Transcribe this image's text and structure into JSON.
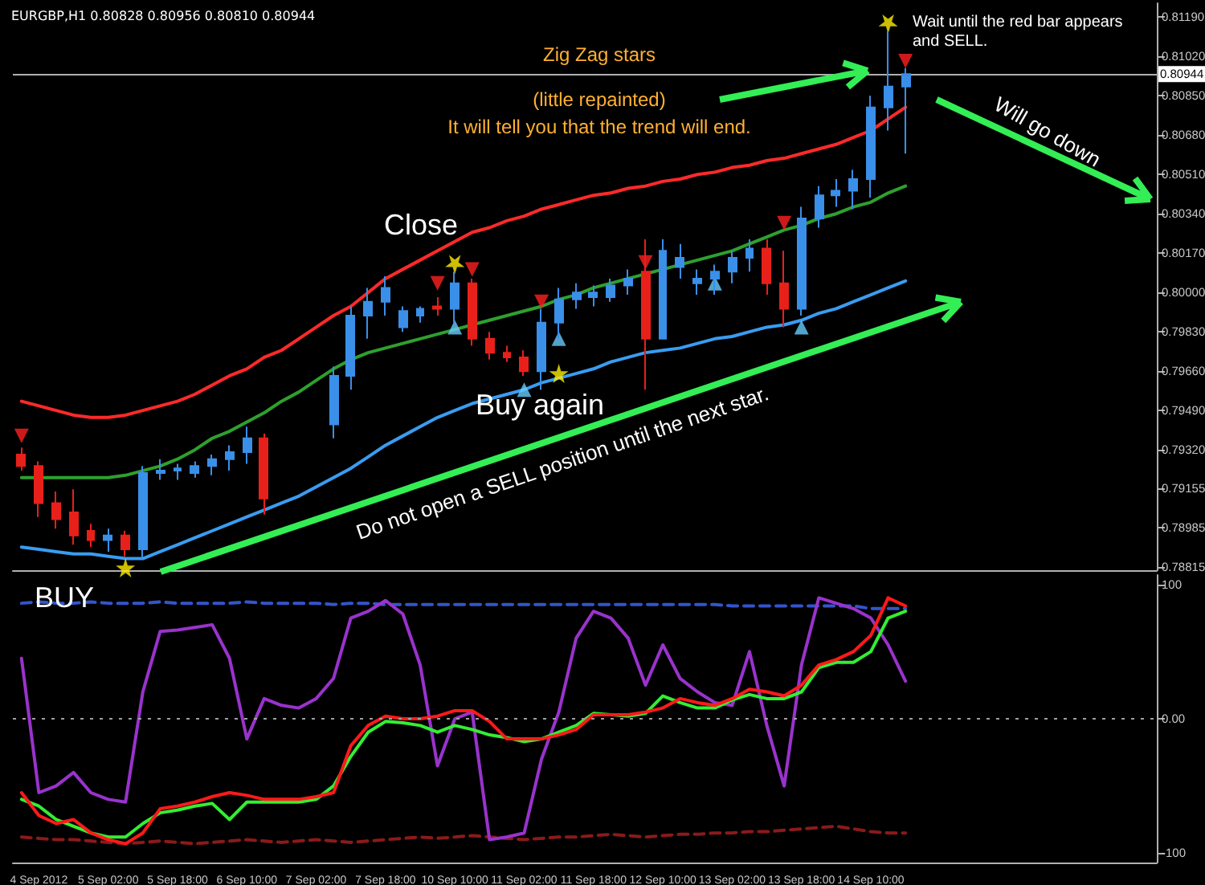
{
  "chart_data": [
    {
      "type": "candlestick",
      "title": "EURGBP,H1 0.80828 0.80956 0.80810 0.80944",
      "ohlc": [
        [
          0.793,
          0.7933,
          0.7923,
          0.7925
        ],
        [
          0.7925,
          0.7927,
          0.7903,
          0.7909
        ],
        [
          0.7909,
          0.7914,
          0.7898,
          0.7902
        ],
        [
          0.7905,
          0.7915,
          0.7891,
          0.7895
        ],
        [
          0.7897,
          0.79,
          0.789,
          0.7893
        ],
        [
          0.7893,
          0.7898,
          0.7888,
          0.7895
        ],
        [
          0.7895,
          0.7897,
          0.7886,
          0.7889
        ],
        [
          0.7889,
          0.7925,
          0.7885,
          0.7922
        ],
        [
          0.7922,
          0.7928,
          0.7919,
          0.7923
        ],
        [
          0.7923,
          0.7926,
          0.7919,
          0.7924
        ],
        [
          0.7922,
          0.7927,
          0.792,
          0.7925
        ],
        [
          0.7925,
          0.793,
          0.7921,
          0.7928
        ],
        [
          0.7928,
          0.7934,
          0.7923,
          0.7931
        ],
        [
          0.7931,
          0.7942,
          0.7926,
          0.7937
        ],
        [
          0.7937,
          0.7939,
          0.7904,
          0.7911
        ],
        null,
        null,
        null,
        [
          0.7943,
          0.7968,
          0.7937,
          0.7964
        ],
        [
          0.7964,
          0.7994,
          0.7958,
          0.799
        ],
        [
          0.799,
          0.8002,
          0.798,
          0.7996
        ],
        [
          0.7996,
          0.8007,
          0.799,
          0.8002
        ],
        [
          0.7985,
          0.7994,
          0.7983,
          0.7992
        ],
        [
          0.799,
          0.7994,
          0.7987,
          0.7993
        ],
        [
          0.7994,
          0.7998,
          0.799,
          0.7993
        ],
        [
          0.7993,
          0.8009,
          0.7987,
          0.8004
        ],
        [
          0.8004,
          0.8006,
          0.7977,
          0.798
        ],
        [
          0.798,
          0.7983,
          0.7971,
          0.7974
        ],
        [
          0.7974,
          0.7977,
          0.797,
          0.7972
        ],
        [
          0.7972,
          0.7975,
          0.7964,
          0.7966
        ],
        [
          0.7966,
          0.7993,
          0.7958,
          0.7987
        ],
        [
          0.7987,
          0.8002,
          0.798,
          0.7997
        ],
        [
          0.7997,
          0.8004,
          0.7993,
          0.8
        ],
        [
          0.7998,
          0.8003,
          0.7994,
          0.8
        ],
        [
          0.7998,
          0.8006,
          0.7996,
          0.8003
        ],
        [
          0.8003,
          0.801,
          0.7999,
          0.8006
        ],
        [
          0.8009,
          0.8023,
          0.7958,
          0.798
        ],
        [
          0.798,
          0.8023,
          0.798,
          0.8018
        ],
        [
          0.8011,
          0.8021,
          0.8006,
          0.8015
        ],
        [
          0.8004,
          0.801,
          0.7999,
          0.8006
        ],
        [
          0.8006,
          0.8012,
          0.7999,
          0.8009
        ],
        [
          0.8009,
          0.8018,
          0.8004,
          0.8015
        ],
        [
          0.8015,
          0.8023,
          0.8009,
          0.8019
        ],
        [
          0.8019,
          0.8023,
          0.7999,
          0.8004
        ],
        [
          0.8004,
          0.8018,
          0.7985,
          0.7993
        ],
        [
          0.7993,
          0.8037,
          0.799,
          0.8032
        ],
        [
          0.8032,
          0.8046,
          0.8028,
          0.8042
        ],
        [
          0.8042,
          0.8049,
          0.8037,
          0.8044
        ],
        [
          0.8044,
          0.8053,
          0.8036,
          0.8049
        ],
        [
          0.8049,
          0.8085,
          0.8041,
          0.808
        ],
        [
          0.808,
          0.8113,
          0.807,
          0.8089
        ],
        [
          0.8089,
          0.8097,
          0.806,
          0.80944
        ],
        null,
        null,
        null,
        null,
        null,
        null,
        null,
        null,
        null,
        null,
        null,
        null,
        null,
        null
      ],
      "colors": [
        "#e8201a",
        "#e8201a",
        "#e8201a",
        "#e8201a",
        "#e8201a",
        "#3a8fe8",
        "#e8201a",
        "#3a8fe8",
        "#3a8fe8",
        "#3a8fe8",
        "#3a8fe8",
        "#3a8fe8",
        "#3a8fe8",
        "#3a8fe8",
        "#e8201a",
        null,
        null,
        null,
        "#3a8fe8",
        "#3a8fe8",
        "#3a8fe8",
        "#3a8fe8",
        "#3a8fe8",
        "#3a8fe8",
        "#e8201a",
        "#3a8fe8",
        "#e8201a",
        "#e8201a",
        "#e8201a",
        "#e8201a",
        "#3a8fe8",
        "#3a8fe8",
        "#3a8fe8",
        "#3a8fe8",
        "#3a8fe8",
        "#3a8fe8",
        "#e8201a",
        "#3a8fe8",
        "#3a8fe8",
        "#3a8fe8",
        "#3a8fe8",
        "#3a8fe8",
        "#3a8fe8",
        "#e8201a",
        "#e8201a",
        "#3a8fe8",
        "#3a8fe8",
        "#3a8fe8",
        "#3a8fe8",
        "#3a8fe8",
        "#3a8fe8",
        "#3a8fe8",
        null,
        null,
        null,
        null,
        null,
        null,
        null,
        null,
        null,
        null,
        null,
        null,
        null,
        null
      ],
      "series": [
        {
          "type": "line",
          "color": "#ff2a2a",
          "line_style": "solid",
          "values": [
            0.7953,
            0.7951,
            0.7949,
            0.7947,
            0.7946,
            0.7946,
            0.7947,
            0.7949,
            0.7951,
            0.7953,
            0.7956,
            0.796,
            0.7964,
            0.7967,
            0.7972,
            0.7975,
            0.798,
            0.7985,
            0.799,
            0.7994,
            0.8,
            0.8006,
            0.801,
            0.8014,
            0.8018,
            0.8022,
            0.8026,
            0.8028,
            0.8031,
            0.8033,
            0.8036,
            0.8038,
            0.804,
            0.8042,
            0.8043,
            0.8045,
            0.8046,
            0.8048,
            0.8049,
            0.8051,
            0.8052,
            0.8054,
            0.8055,
            0.8057,
            0.8058,
            0.806,
            0.8062,
            0.8064,
            0.8067,
            0.807,
            0.8075,
            0.808,
            null,
            null,
            null,
            null,
            null,
            null,
            null,
            null,
            null,
            null,
            null,
            null,
            null,
            null
          ]
        },
        {
          "type": "line",
          "color": "#2ea02e",
          "line_style": "solid",
          "values": [
            0.792,
            0.792,
            0.792,
            0.792,
            0.792,
            0.792,
            0.7921,
            0.7923,
            0.7925,
            0.7928,
            0.7932,
            0.7937,
            0.794,
            0.7944,
            0.7948,
            0.7953,
            0.7957,
            0.7962,
            0.7967,
            0.7971,
            0.7974,
            0.7976,
            0.7978,
            0.798,
            0.7982,
            0.7984,
            0.7986,
            0.7988,
            0.799,
            0.7992,
            0.7994,
            0.7997,
            0.7999,
            0.8002,
            0.8004,
            0.8006,
            0.8008,
            0.801,
            0.8012,
            0.8014,
            0.8016,
            0.8018,
            0.8021,
            0.8024,
            0.8027,
            0.8029,
            0.8032,
            0.8034,
            0.8037,
            0.8039,
            0.8043,
            0.8046,
            null,
            null,
            null,
            null,
            null,
            null,
            null,
            null,
            null,
            null,
            null,
            null,
            null,
            null
          ]
        },
        {
          "type": "line",
          "color": "#3a9cf0",
          "line_style": "solid",
          "values": [
            0.789,
            0.7889,
            0.7888,
            0.7887,
            0.7887,
            0.7886,
            0.7885,
            0.7885,
            0.7888,
            0.7891,
            0.7894,
            0.7897,
            0.79,
            0.7903,
            0.7906,
            0.7909,
            0.7912,
            0.7916,
            0.792,
            0.7924,
            0.7929,
            0.7934,
            0.7938,
            0.7942,
            0.7946,
            0.7949,
            0.7952,
            0.7954,
            0.7956,
            0.7958,
            0.7961,
            0.7963,
            0.7965,
            0.7967,
            0.797,
            0.7972,
            0.7974,
            0.7975,
            0.7976,
            0.7978,
            0.798,
            0.7981,
            0.7983,
            0.7985,
            0.7986,
            0.7988,
            0.7991,
            0.7993,
            0.7996,
            0.7999,
            0.8002,
            0.8005,
            null,
            null,
            null,
            null,
            null,
            null,
            null,
            null,
            null,
            null,
            null,
            null,
            null,
            null
          ]
        },
        {
          "type": "scatter",
          "marker": "triangle",
          "color": "#ff2020",
          "values": [
            0.7938,
            null,
            null,
            null,
            null,
            null,
            null,
            null,
            null,
            null,
            null,
            null,
            null,
            null,
            null,
            null,
            null,
            null,
            null,
            null,
            null,
            null,
            null,
            null,
            0.8004,
            null,
            0.801,
            null,
            null,
            null,
            0.7996,
            null,
            null,
            null,
            null,
            null,
            0.8013,
            null,
            null,
            null,
            null,
            null,
            null,
            null,
            0.803,
            null,
            null,
            null,
            null,
            null,
            null,
            0.81,
            null,
            null,
            null,
            null,
            null,
            null,
            null,
            null,
            null,
            null,
            null,
            null,
            null,
            null
          ]
        },
        {
          "type": "scatter",
          "marker": "triangle",
          "color": "#66ccff",
          "values": [
            null,
            null,
            null,
            null,
            null,
            null,
            null,
            null,
            null,
            null,
            null,
            null,
            null,
            null,
            null,
            null,
            null,
            null,
            null,
            null,
            null,
            null,
            null,
            null,
            null,
            0.7985,
            null,
            null,
            null,
            0.7958,
            null,
            0.798,
            null,
            null,
            null,
            null,
            null,
            null,
            null,
            null,
            0.8004,
            null,
            null,
            null,
            null,
            0.7985,
            null,
            null,
            null,
            null,
            null,
            null,
            null,
            null,
            null,
            null,
            null,
            null,
            null,
            null,
            null,
            null,
            null,
            null,
            null,
            null
          ]
        },
        {
          "type": "scatter",
          "marker": "star",
          "color": "#ffee00",
          "values": [
            null,
            null,
            null,
            null,
            null,
            null,
            0.7881,
            null,
            null,
            null,
            null,
            null,
            null,
            null,
            null,
            null,
            null,
            null,
            null,
            null,
            null,
            null,
            null,
            null,
            null,
            0.8012,
            null,
            null,
            null,
            null,
            null,
            0.7965,
            null,
            null,
            null,
            null,
            null,
            null,
            null,
            null,
            null,
            null,
            null,
            null,
            null,
            null,
            null,
            null,
            null,
            null,
            0.8116,
            null,
            null,
            null,
            null,
            null,
            null,
            null,
            null,
            null,
            null,
            null,
            null,
            null,
            null,
            null
          ]
        }
      ],
      "ylim": [
        0.788,
        0.8125
      ],
      "yticks": [
        {
          "value": 0.8119,
          "label": "0.81190"
        },
        {
          "value": 0.8102,
          "label": "0.81020"
        },
        {
          "value": 0.8085,
          "label": "0.80850"
        },
        {
          "value": 0.8068,
          "label": "0.80680"
        },
        {
          "value": 0.8051,
          "label": "0.80510"
        },
        {
          "value": 0.8034,
          "label": "0.80340"
        },
        {
          "value": 0.8017,
          "label": "0.80170"
        },
        {
          "value": 0.8,
          "label": "0.80000"
        },
        {
          "value": 0.7983,
          "label": "0.79830"
        },
        {
          "value": 0.7966,
          "label": "0.79660"
        },
        {
          "value": 0.7949,
          "label": "0.79490"
        },
        {
          "value": 0.7932,
          "label": "0.79320"
        },
        {
          "value": 0.79155,
          "label": "0.79155"
        },
        {
          "value": 0.78985,
          "label": "0.78985"
        },
        {
          "value": 0.78815,
          "label": "0.78815"
        }
      ],
      "ref_lines": [
        {
          "axis": "y",
          "value": 0.80944,
          "label": "0.80944",
          "color": "#b0b0b0",
          "line_style": "solid"
        }
      ],
      "annotations": [
        "Zig Zag stars",
        "(little repainted)",
        "It will tell you that the trend will end.",
        "Wait until the red bar appears and SELL.",
        "Will go down",
        "Close",
        "Buy again",
        "Do not open a SELL position until the next star.",
        "BUY"
      ],
      "tick_labels": "y",
      "grid": false
    },
    {
      "type": "line",
      "categories": [
        null,
        "4 Sep 2012",
        null,
        null,
        null,
        "5 Sep 02:00",
        null,
        null,
        null,
        "5 Sep 18:00",
        null,
        null,
        null,
        "6 Sep 10:00",
        null,
        null,
        null,
        "7 Sep 02:00",
        null,
        null,
        null,
        "7 Sep 18:00",
        null,
        null,
        null,
        "10 Sep 10:00",
        null,
        null,
        null,
        "11 Sep 02:00",
        null,
        null,
        null,
        "11 Sep 18:00",
        null,
        null,
        null,
        "12 Sep 10:00",
        null,
        null,
        null,
        "13 Sep 02:00",
        null,
        null,
        null,
        "13 Sep 18:00",
        null,
        null,
        null,
        "14 Sep 10:00",
        null,
        null,
        null,
        null,
        null,
        null,
        null,
        null,
        null,
        null,
        null,
        null,
        null,
        null,
        null,
        null
      ],
      "series": [
        {
          "color": "#3355cc",
          "line_style": "dashed",
          "values": [
            86,
            87,
            86,
            86,
            87,
            86,
            86,
            86,
            87,
            86,
            86,
            86,
            86,
            87,
            86,
            86,
            86,
            86,
            85,
            86,
            86,
            85,
            85,
            85,
            85,
            85,
            85,
            85,
            85,
            85,
            85,
            85,
            85,
            85,
            85,
            85,
            85,
            85,
            85,
            85,
            85,
            84,
            84,
            84,
            84,
            84,
            84,
            84,
            84,
            82,
            82,
            82,
            null,
            null,
            null,
            null,
            null,
            null,
            null,
            null,
            null,
            null,
            null,
            null,
            null,
            null
          ]
        },
        {
          "color": "#8b1a1a",
          "line_style": "dashed",
          "values": [
            -88,
            -89,
            -90,
            -90,
            -91,
            -92,
            -93,
            -92,
            -91,
            -92,
            -93,
            -92,
            -91,
            -90,
            -91,
            -92,
            -91,
            -90,
            -91,
            -92,
            -91,
            -90,
            -89,
            -88,
            -89,
            -88,
            -87,
            -88,
            -89,
            -90,
            -89,
            -88,
            -88,
            -87,
            -86,
            -87,
            -88,
            -87,
            -86,
            -86,
            -85,
            -85,
            -84,
            -84,
            -83,
            -82,
            -81,
            -80,
            -82,
            -84,
            -85,
            -85,
            null,
            null,
            null,
            null,
            null,
            null,
            null,
            null,
            null,
            null,
            null,
            null,
            null,
            null
          ]
        },
        {
          "color": "#9933cc",
          "line_style": "solid",
          "values": [
            45,
            -55,
            -50,
            -40,
            -55,
            -60,
            -62,
            20,
            65,
            66,
            68,
            70,
            45,
            -15,
            15,
            10,
            8,
            15,
            30,
            75,
            80,
            88,
            78,
            40,
            -35,
            0,
            5,
            -90,
            -88,
            -85,
            -30,
            5,
            60,
            80,
            75,
            60,
            25,
            55,
            30,
            20,
            12,
            10,
            50,
            -5,
            -50,
            40,
            90,
            86,
            82,
            75,
            55,
            28,
            null,
            null,
            null,
            null,
            null,
            null,
            null,
            null,
            null,
            null,
            null,
            null,
            null,
            null
          ]
        },
        {
          "color": "#33ee33",
          "line_style": "solid",
          "values": [
            -60,
            -65,
            -75,
            -80,
            -85,
            -88,
            -88,
            -78,
            -70,
            -68,
            -65,
            -63,
            -75,
            -62,
            -62,
            -62,
            -62,
            -60,
            -50,
            -28,
            -10,
            -2,
            -3,
            -5,
            -10,
            -5,
            -8,
            -12,
            -14,
            -17,
            -15,
            -10,
            -5,
            4,
            3,
            2,
            4,
            17,
            12,
            8,
            8,
            14,
            18,
            15,
            15,
            20,
            38,
            42,
            42,
            50,
            75,
            80,
            null,
            null,
            null,
            null,
            null,
            null,
            null,
            null,
            null,
            null,
            null,
            null,
            null,
            null
          ]
        },
        {
          "color": "#ff1a1a",
          "line_style": "solid",
          "values": [
            -55,
            -72,
            -78,
            -75,
            -85,
            -90,
            -93,
            -85,
            -67,
            -65,
            -62,
            -58,
            -55,
            -57,
            -60,
            -60,
            -60,
            -58,
            -55,
            -20,
            -5,
            2,
            0,
            0,
            2,
            6,
            6,
            -2,
            -15,
            -15,
            -15,
            -12,
            -8,
            3,
            3,
            3,
            5,
            8,
            15,
            12,
            10,
            15,
            22,
            20,
            17,
            25,
            40,
            44,
            50,
            62,
            90,
            84,
            null,
            null,
            null,
            null,
            null,
            null,
            null,
            null,
            null,
            null,
            null,
            null,
            null,
            null
          ]
        }
      ],
      "ylim": [
        -107,
        107
      ],
      "yticks": [
        {
          "value": 100,
          "label": "100"
        },
        {
          "value": 0,
          "label": "0.00"
        },
        {
          "value": -100,
          "label": "-100"
        }
      ],
      "ref_lines": [
        {
          "axis": "y",
          "value": 0,
          "color": "#a0a0a0",
          "line_style": "dotted"
        }
      ],
      "grid": false
    }
  ]
}
